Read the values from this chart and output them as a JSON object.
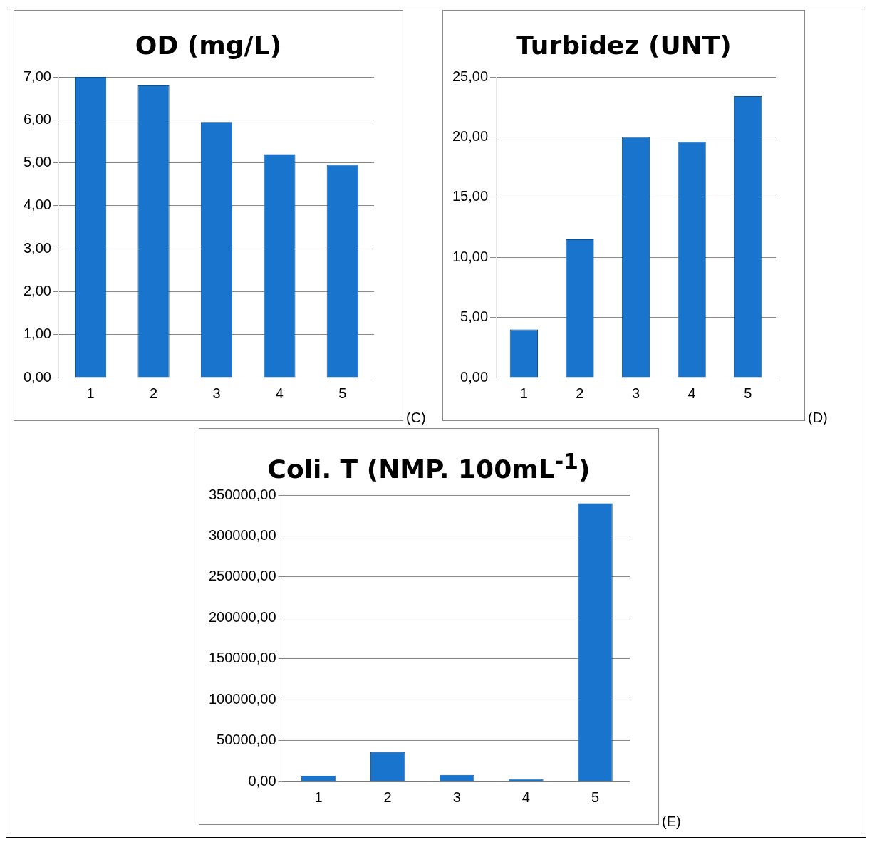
{
  "chart_data": [
    {
      "type": "bar",
      "title": "OD (mg/L)",
      "categories": [
        "1",
        "2",
        "3",
        "4",
        "5"
      ],
      "values": [
        7.0,
        6.8,
        5.95,
        5.2,
        4.95
      ],
      "color": "#1874cd",
      "ylim": [
        0,
        7
      ],
      "yticks": [
        {
          "value": 0,
          "label": "0,00"
        },
        {
          "value": 1,
          "label": "1,00"
        },
        {
          "value": 2,
          "label": "2,00"
        },
        {
          "value": 3,
          "label": "3,00"
        },
        {
          "value": 4,
          "label": "4,00"
        },
        {
          "value": 5,
          "label": "5,00"
        },
        {
          "value": 6,
          "label": "6,00"
        },
        {
          "value": 7,
          "label": "7,00"
        }
      ],
      "grid": "y",
      "annotations": [
        "(C)"
      ]
    },
    {
      "type": "bar",
      "title": "Turbidez (UNT)",
      "categories": [
        "1",
        "2",
        "3",
        "4",
        "5"
      ],
      "values": [
        4.0,
        11.5,
        20.0,
        19.6,
        23.4
      ],
      "color": "#1874cd",
      "ylim": [
        0,
        25
      ],
      "yticks": [
        {
          "value": 0,
          "label": "0,00"
        },
        {
          "value": 5,
          "label": "5,00"
        },
        {
          "value": 10,
          "label": "10,00"
        },
        {
          "value": 15,
          "label": "15,00"
        },
        {
          "value": 20,
          "label": "20,00"
        },
        {
          "value": 25,
          "label": "25,00"
        }
      ],
      "grid": "y",
      "annotations": [
        "(D)"
      ]
    },
    {
      "type": "bar",
      "title": "Coli. T (NMP. 100mL$^{-1}$)",
      "categories": [
        "1",
        "2",
        "3",
        "4",
        "5"
      ],
      "values": [
        7000,
        36000,
        8000,
        3000,
        340000
      ],
      "color": "#1874cd",
      "ylim": [
        0,
        350000
      ],
      "yticks": [
        {
          "value": 0,
          "label": "0,00"
        },
        {
          "value": 50000,
          "label": "50000,00"
        },
        {
          "value": 100000,
          "label": "100000,00"
        },
        {
          "value": 150000,
          "label": "150000,00"
        },
        {
          "value": 200000,
          "label": "200000,00"
        },
        {
          "value": 250000,
          "label": "250000,00"
        },
        {
          "value": 300000,
          "label": "300000,00"
        },
        {
          "value": 350000,
          "label": "350000,00"
        }
      ],
      "grid": "y",
      "annotations": [
        "(E)"
      ]
    }
  ]
}
